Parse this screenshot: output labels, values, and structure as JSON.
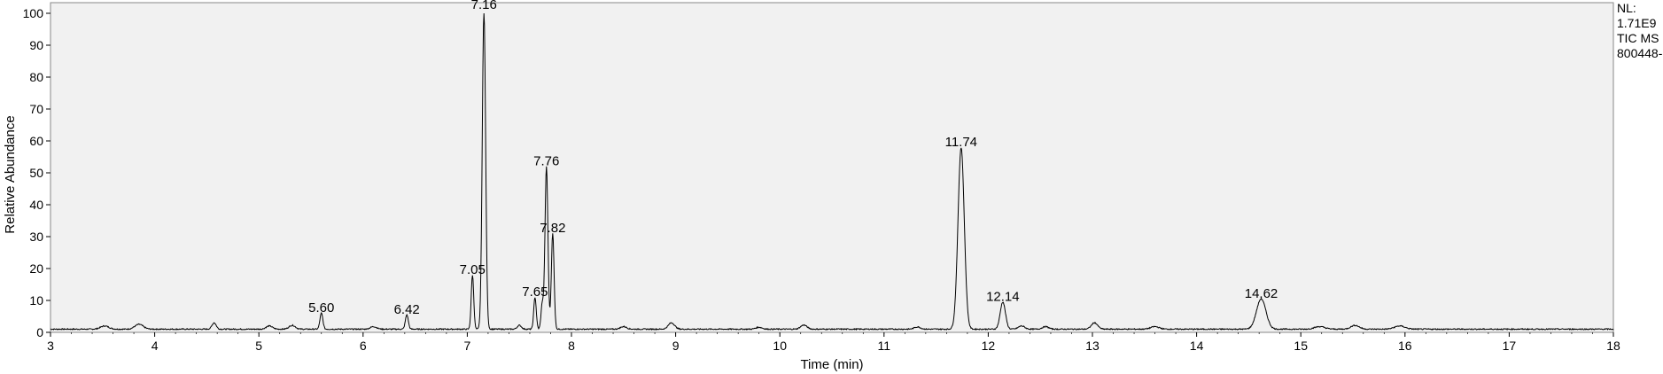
{
  "chart_data": {
    "type": "line",
    "xlabel": "Time (min)",
    "ylabel": "Relative Abundance",
    "xlim": [
      3,
      18
    ],
    "ylim": [
      0,
      100
    ],
    "x_ticks": [
      3,
      4,
      5,
      6,
      7,
      8,
      9,
      10,
      11,
      12,
      13,
      14,
      15,
      16,
      17,
      18
    ],
    "y_ticks": [
      0,
      10,
      20,
      30,
      40,
      50,
      60,
      70,
      80,
      90,
      100
    ],
    "grid": false,
    "info": [
      "NL:",
      "1.71E9",
      "TIC  MS",
      "800448-"
    ],
    "peaks": [
      {
        "rt": 5.6,
        "height": 5,
        "width": 0.014,
        "label": "5.60"
      },
      {
        "rt": 6.42,
        "height": 4.5,
        "width": 0.014,
        "label": "6.42"
      },
      {
        "rt": 7.05,
        "height": 17,
        "width": 0.012,
        "label": "7.05"
      },
      {
        "rt": 7.16,
        "height": 100,
        "width": 0.016,
        "label": "7.16"
      },
      {
        "rt": 7.65,
        "height": 10,
        "width": 0.012,
        "label": "7.65"
      },
      {
        "rt": 7.72,
        "height": 8,
        "width": 0.012,
        "label": ""
      },
      {
        "rt": 7.76,
        "height": 51,
        "width": 0.014,
        "label": "7.76"
      },
      {
        "rt": 7.82,
        "height": 30,
        "width": 0.013,
        "label": "7.82"
      },
      {
        "rt": 11.74,
        "height": 57,
        "width": 0.03,
        "label": "11.74"
      },
      {
        "rt": 12.14,
        "height": 8.5,
        "width": 0.025,
        "label": "12.14"
      },
      {
        "rt": 14.62,
        "height": 9.5,
        "width": 0.045,
        "label": "14.62"
      },
      {
        "rt": 3.85,
        "height": 1.5,
        "width": 0.04,
        "label": ""
      },
      {
        "rt": 3.52,
        "height": 1.0,
        "width": 0.04,
        "label": ""
      },
      {
        "rt": 4.57,
        "height": 2.0,
        "width": 0.02,
        "label": ""
      },
      {
        "rt": 5.1,
        "height": 1.0,
        "width": 0.03,
        "label": ""
      },
      {
        "rt": 5.32,
        "height": 1.2,
        "width": 0.03,
        "label": ""
      },
      {
        "rt": 6.1,
        "height": 0.8,
        "width": 0.03,
        "label": ""
      },
      {
        "rt": 7.5,
        "height": 1.2,
        "width": 0.02,
        "label": ""
      },
      {
        "rt": 8.5,
        "height": 0.8,
        "width": 0.03,
        "label": ""
      },
      {
        "rt": 8.96,
        "height": 2.0,
        "width": 0.03,
        "label": ""
      },
      {
        "rt": 9.8,
        "height": 0.6,
        "width": 0.03,
        "label": ""
      },
      {
        "rt": 10.23,
        "height": 1.3,
        "width": 0.03,
        "label": ""
      },
      {
        "rt": 11.32,
        "height": 0.7,
        "width": 0.03,
        "label": ""
      },
      {
        "rt": 12.32,
        "height": 1.0,
        "width": 0.03,
        "label": ""
      },
      {
        "rt": 12.55,
        "height": 0.8,
        "width": 0.03,
        "label": ""
      },
      {
        "rt": 13.02,
        "height": 2.0,
        "width": 0.03,
        "label": ""
      },
      {
        "rt": 13.6,
        "height": 0.8,
        "width": 0.04,
        "label": ""
      },
      {
        "rt": 15.18,
        "height": 0.8,
        "width": 0.05,
        "label": ""
      },
      {
        "rt": 15.52,
        "height": 1.2,
        "width": 0.04,
        "label": ""
      },
      {
        "rt": 15.95,
        "height": 1.0,
        "width": 0.05,
        "label": ""
      }
    ],
    "baseline": 1.0
  }
}
